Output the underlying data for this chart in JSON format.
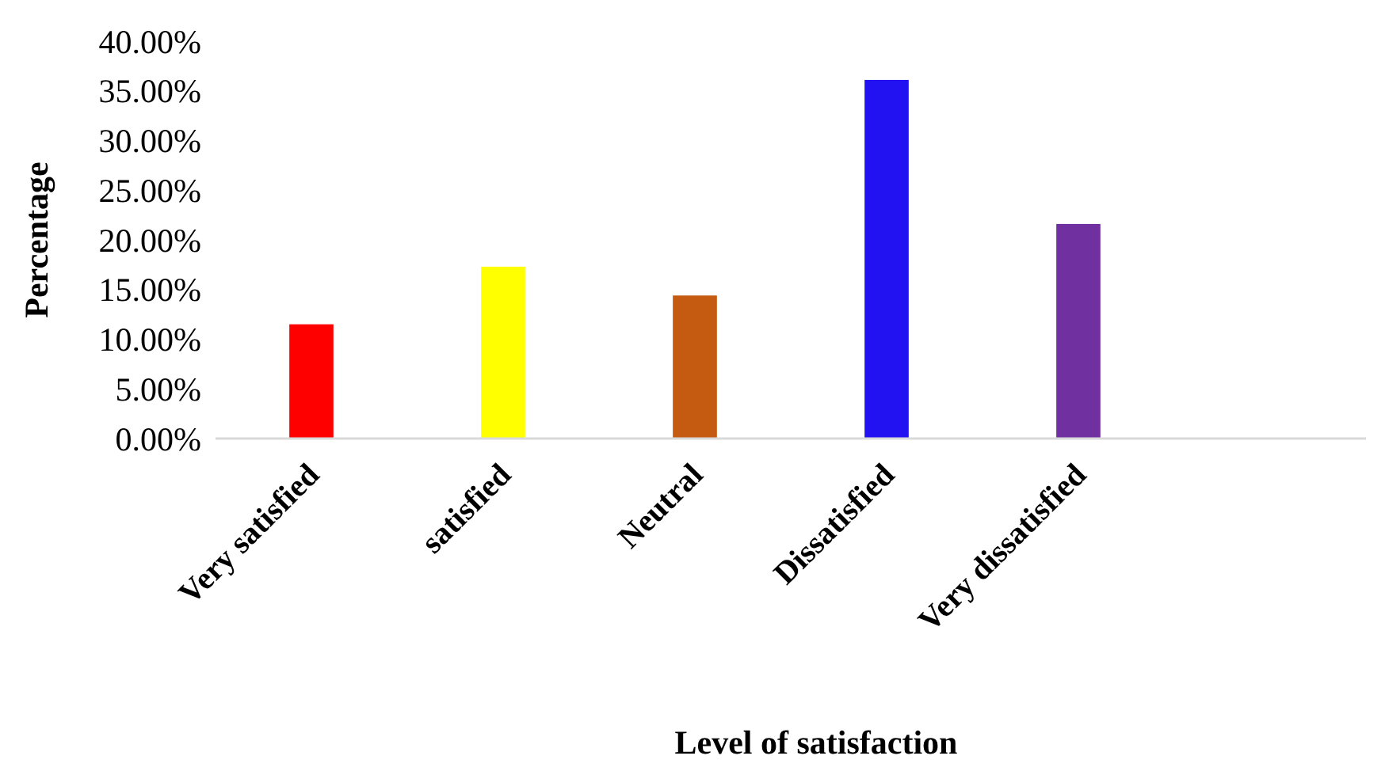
{
  "chart_data": {
    "type": "bar",
    "xlabel": "Level of satisfaction",
    "ylabel": "Percentage",
    "categories": [
      "Very satisfied",
      "satisfied",
      "Neutral",
      "Dissatisfied",
      "Very dissatisfied",
      null
    ],
    "values": [
      11.5,
      17.3,
      14.4,
      36.1,
      21.6,
      null
    ],
    "colors": [
      "#ff0000",
      "#ffff00",
      "#c55a11",
      "#2211f0",
      "#7030a0",
      null
    ],
    "ylim": [
      0,
      40
    ],
    "yticks": [
      {
        "value": 0,
        "label": "0.00%"
      },
      {
        "value": 5,
        "label": "5.00%"
      },
      {
        "value": 10,
        "label": "10.00%"
      },
      {
        "value": 15,
        "label": "15.00%"
      },
      {
        "value": 20,
        "label": "20.00%"
      },
      {
        "value": 25,
        "label": "25.00%"
      },
      {
        "value": 30,
        "label": "30.00%"
      },
      {
        "value": 35,
        "label": "35.00%"
      },
      {
        "value": 40,
        "label": "40.00%"
      }
    ],
    "grid": false
  }
}
